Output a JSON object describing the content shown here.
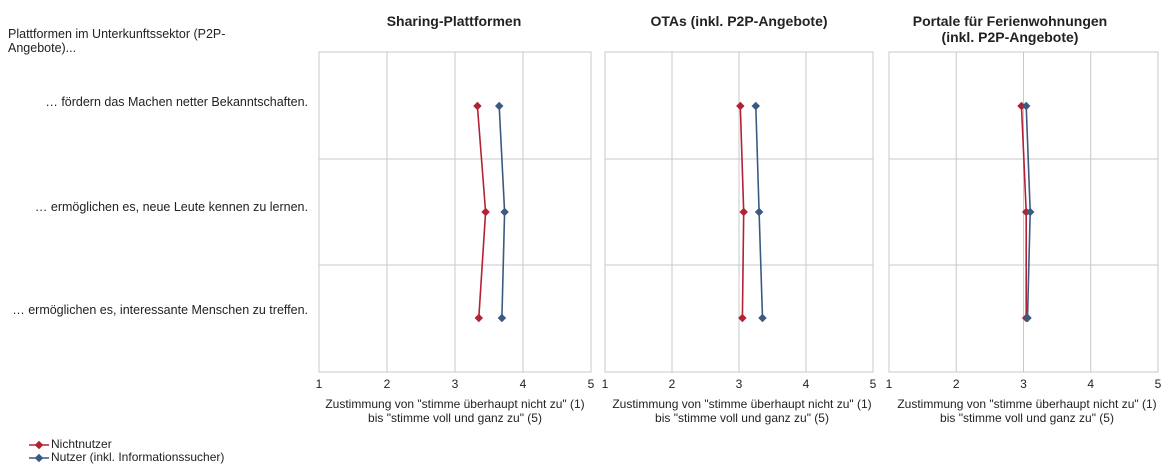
{
  "row_heading": "Plattformen im Unterkunftssektor (P2P-Angebote)...",
  "row_labels": [
    "… fördern das Machen netter Bekanntschaften.",
    "… ermöglichen es, neue Leute kennen zu lernen.",
    "… ermöglichen es, interessante Menschen zu treffen."
  ],
  "legend": {
    "nichtnutzer": "Nichtnutzer",
    "nutzer": "Nutzer (inkl. Informationssucher)"
  },
  "colors": {
    "nichtnutzer": "#b22234",
    "nutzer": "#3b5a80",
    "grid": "#c8c8c8"
  },
  "chart_data": [
    {
      "type": "line",
      "title": "Sharing-Plattformen",
      "xlabel": "Zustimmung von \"stimme überhaupt nicht zu\" (1) bis \"stimme voll und ganz zu\" (5)",
      "xlim": [
        1,
        5
      ],
      "xticks": [
        "1",
        "2",
        "3",
        "4",
        "5"
      ],
      "series": [
        {
          "name": "Nichtnutzer",
          "values": [
            3.33,
            3.45,
            3.35
          ]
        },
        {
          "name": "Nutzer (inkl. Informationssucher)",
          "values": [
            3.65,
            3.73,
            3.69
          ]
        }
      ]
    },
    {
      "type": "line",
      "title": "OTAs (inkl. P2P-Angebote)",
      "xlabel": "Zustimmung von \"stimme überhaupt nicht zu\" (1) bis \"stimme voll und ganz zu\" (5)",
      "xlim": [
        1,
        5
      ],
      "xticks": [
        "1",
        "2",
        "3",
        "4",
        "5"
      ],
      "series": [
        {
          "name": "Nichtnutzer",
          "values": [
            3.02,
            3.07,
            3.05
          ]
        },
        {
          "name": "Nutzer (inkl. Informationssucher)",
          "values": [
            3.25,
            3.3,
            3.35
          ]
        }
      ]
    },
    {
      "type": "line",
      "title": "Portale für Ferienwohnungen (inkl. P2P-Angebote)",
      "xlabel": "Zustimmung von \"stimme überhaupt nicht zu\" (1) bis \"stimme voll und ganz zu\" (5)",
      "xlim": [
        1,
        5
      ],
      "xticks": [
        "1",
        "2",
        "3",
        "4",
        "5"
      ],
      "series": [
        {
          "name": "Nichtnutzer",
          "values": [
            2.97,
            3.04,
            3.04
          ]
        },
        {
          "name": "Nutzer (inkl. Informationssucher)",
          "values": [
            3.04,
            3.1,
            3.06
          ]
        }
      ]
    }
  ]
}
